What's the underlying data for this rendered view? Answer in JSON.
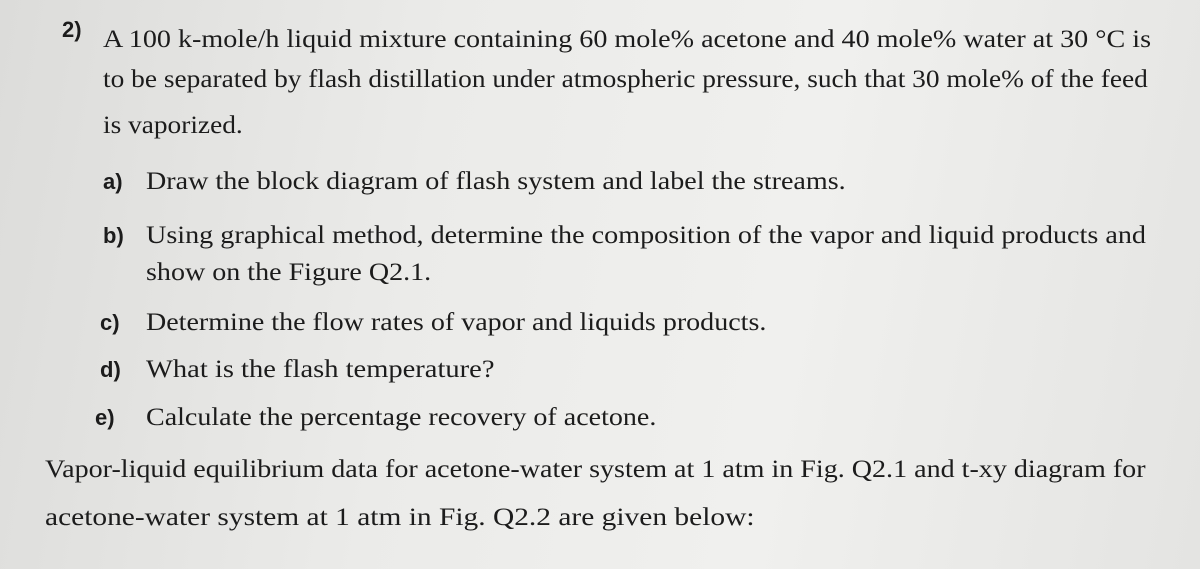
{
  "question": {
    "number": "2)",
    "lines": [
      "A 100 k-mole/h liquid mixture containing 60 mole% acetone and 40 mole% water at 30 °C is",
      "to be separated by flash distillation under atmospheric pressure, such that 30 mole% of the feed",
      "is vaporized."
    ],
    "parts": [
      {
        "label": "a)",
        "lines": [
          "Draw the block diagram of flash system and label the streams."
        ]
      },
      {
        "label": "b)",
        "lines": [
          "Using graphical method, determine the composition of the vapor and liquid products and",
          "show on the Figure Q2.1."
        ]
      },
      {
        "label": "c)",
        "lines": [
          "Determine the flow rates of vapor and liquids products."
        ]
      },
      {
        "label": "d)",
        "lines": [
          "What is the flash temperature?"
        ]
      },
      {
        "label": "e)",
        "lines": [
          "Calculate the percentage recovery of acetone."
        ]
      }
    ],
    "note": [
      "Vapor-liquid equilibrium data for acetone-water system at 1 atm in Fig. Q2.1 and t-xy diagram for",
      "acetone-water system at 1 atm in Fig. Q2.2 are given below:"
    ]
  }
}
